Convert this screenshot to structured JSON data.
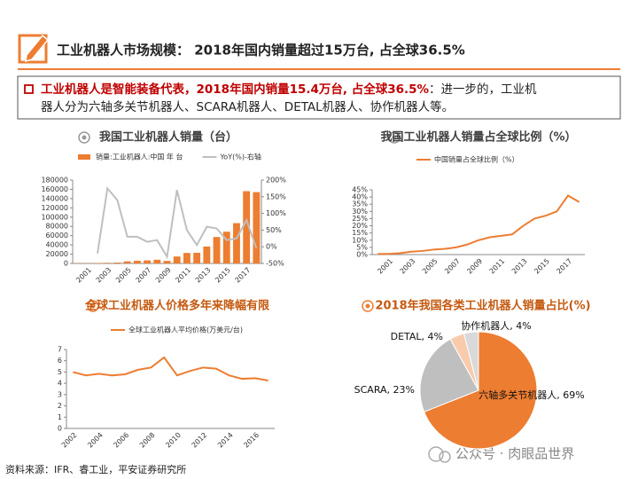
{
  "header": {
    "title": "工业机器人市场规模： 2018年国内销量超过15万台, 占全球36.5%"
  },
  "bullet": {
    "highlight": "工业机器人是智能装备代表，2018年国内销量15.4万台, 占全球36.5%",
    "text_lines": [
      "：进一步的，工业机",
      "器人分为六轴多关节机器人、SCARA机器人、DETAL机器人、协作机器人等。"
    ]
  },
  "source": "资料来源：IFR、睿工业，平安证券研究所",
  "watermark": "公众号 · 肉眼品世界",
  "chart_data": [
    {
      "type": "bar",
      "title": "我国工业机器人销量（台）",
      "categories": [
        null,
        "2001",
        null,
        "2003",
        null,
        "2005",
        null,
        "2007",
        null,
        "2009",
        null,
        "2011",
        null,
        "2013",
        null,
        "2015",
        null,
        "2017",
        null
      ],
      "series": [
        {
          "name": "销量:工业机器人:中国 年 台",
          "type": "bar",
          "color": "#ed7d31",
          "values": [
            400,
            700,
            1000,
            1400,
            1900,
            4500,
            5800,
            6600,
            7900,
            5500,
            15000,
            22600,
            23000,
            36600,
            57100,
            68500,
            87000,
            156000,
            154000
          ]
        },
        {
          "name": "YoY(%)-右轴",
          "type": "line",
          "axis": "y2",
          "color": "#bfbfbf",
          "values": [
            null,
            null,
            -20,
            175,
            140,
            30,
            30,
            15,
            20,
            -30,
            170,
            50,
            5,
            60,
            55,
            20,
            25,
            80,
            -5
          ]
        }
      ],
      "ylim": [
        0,
        180000
      ],
      "yticks": [
        0,
        20000,
        40000,
        60000,
        80000,
        100000,
        120000,
        140000,
        160000,
        180000
      ],
      "y2lim": [
        -50,
        200
      ],
      "y2ticks": [
        {
          "value": -50,
          "label": "-50%"
        },
        {
          "value": 0,
          "label": "0%"
        },
        {
          "value": 50,
          "label": "50%"
        },
        {
          "value": 100,
          "label": "100%"
        },
        {
          "value": 150,
          "label": "150%"
        },
        {
          "value": 200,
          "label": "200%"
        }
      ],
      "legend": "top"
    },
    {
      "type": "line",
      "title": "我国工业机器人销量占全球比例（%）",
      "categories": [
        null,
        "2001",
        null,
        "2003",
        null,
        "2005",
        null,
        "2007",
        null,
        "2009",
        null,
        "2011",
        null,
        "2013",
        null,
        "2015",
        null,
        "2017",
        null
      ],
      "series": [
        {
          "name": "中国销量占全球比例（%）",
          "color": "#ed7d31",
          "values": [
            0.5,
            0.5,
            1,
            2,
            2.5,
            3.5,
            4,
            5,
            7,
            10,
            12,
            13,
            14,
            20,
            25,
            27,
            30,
            41,
            36.5
          ]
        }
      ],
      "ylim": [
        0,
        45
      ],
      "yticks": [
        {
          "value": 0,
          "label": "0%"
        },
        {
          "value": 5,
          "label": "5%"
        },
        {
          "value": 10,
          "label": "10%"
        },
        {
          "value": 15,
          "label": "15%"
        },
        {
          "value": 20,
          "label": "20%"
        },
        {
          "value": 25,
          "label": "25%"
        },
        {
          "value": 30,
          "label": "30%"
        },
        {
          "value": 35,
          "label": "35%"
        },
        {
          "value": 40,
          "label": "40%"
        },
        {
          "value": 45,
          "label": "45%"
        }
      ],
      "legend": "top"
    },
    {
      "type": "line",
      "title": "全球工业机器人价格多年来降幅有限",
      "categories": [
        "2002",
        null,
        "2004",
        null,
        "2006",
        null,
        "2008",
        null,
        "2010",
        null,
        "2012",
        null,
        "2014",
        null,
        "2016",
        null
      ],
      "series": [
        {
          "name": "全球工业机器人平均价格(万美元/台)",
          "color": "#ed7d31",
          "values": [
            5.0,
            4.7,
            4.85,
            4.7,
            4.8,
            5.2,
            5.4,
            6.3,
            4.7,
            5.1,
            5.4,
            5.3,
            4.7,
            4.4,
            4.45,
            4.25
          ]
        }
      ],
      "ylim": [
        0,
        7
      ],
      "yticks": [
        0,
        1,
        2,
        3,
        4,
        5,
        6,
        7
      ],
      "legend": "top"
    },
    {
      "type": "pie",
      "title": "2018年我国各类工业机器人销量占比(%)",
      "categories": [
        "六轴多关节机器人",
        "SCARA",
        "DETAL",
        "协作机器人"
      ],
      "values": [
        69,
        23,
        4,
        4
      ],
      "value_labels": [
        "六轴多关节机器人, 69%",
        "SCARA, 23%",
        "DETAL, 4%",
        "协作机器人, 4%"
      ],
      "colors": [
        "#ed7d31",
        "#bfbfbf",
        "#f8cbad",
        "#d9d9d9"
      ]
    }
  ]
}
